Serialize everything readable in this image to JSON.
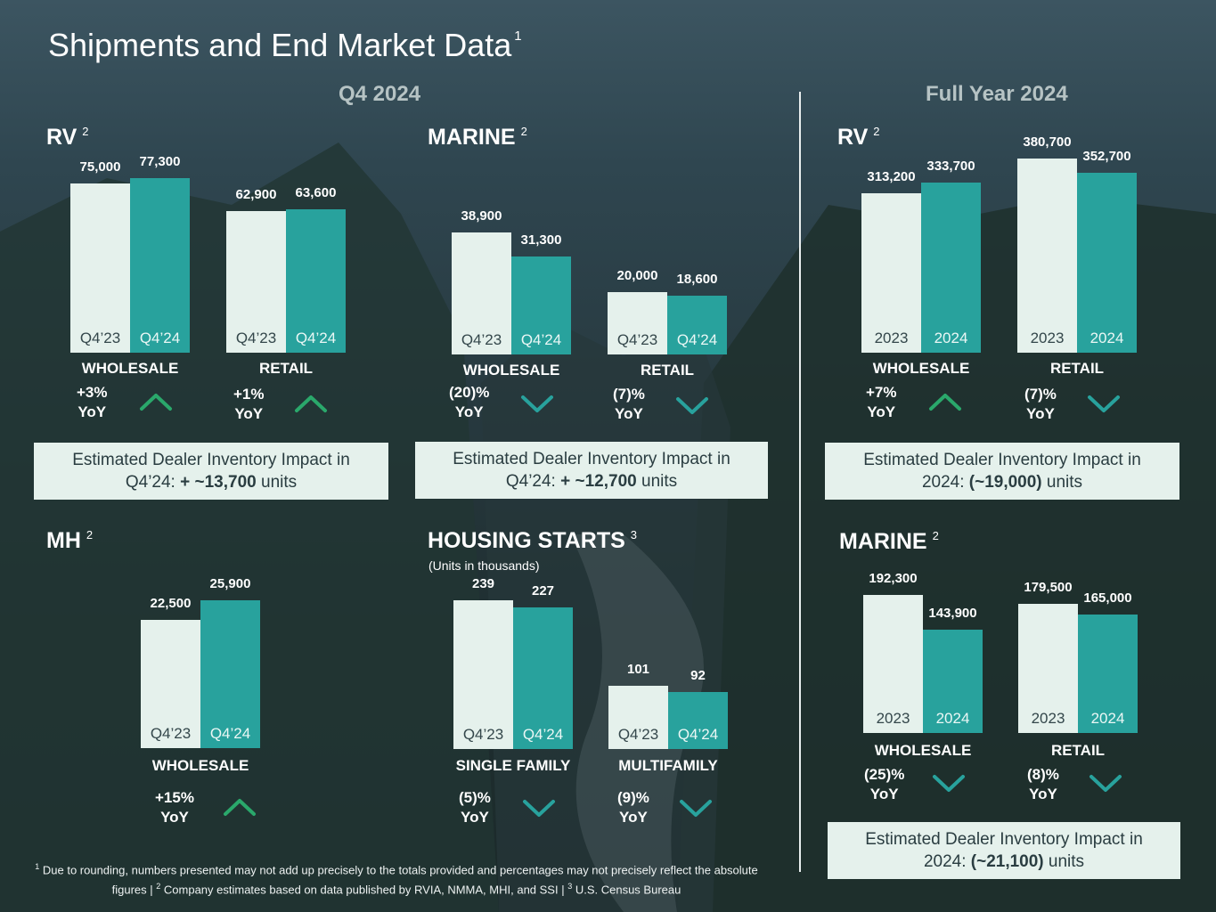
{
  "title": "Shipments and End Market Data",
  "title_footnote": "1",
  "sections": {
    "left": "Q4 2024",
    "right": "Full Year 2024"
  },
  "colors": {
    "prior": "#e5f1ec",
    "current": "#28a29d",
    "up": "#2aa86b",
    "down": "#28a29d"
  },
  "chart_data": [
    {
      "id": "rv_q4",
      "type": "bar",
      "title": "RV",
      "footnote": "2",
      "subtitle": "",
      "groups": [
        {
          "name": "WHOLESALE",
          "categories": [
            "Q4’23",
            "Q4’24"
          ],
          "values": [
            75000,
            77300
          ],
          "value_labels": [
            "75,000",
            "77,300"
          ],
          "yoy": "+3%",
          "yoy_suffix": "YoY",
          "direction": "up"
        },
        {
          "name": "RETAIL",
          "categories": [
            "Q4’23",
            "Q4’24"
          ],
          "values": [
            62900,
            63600
          ],
          "value_labels": [
            "62,900",
            "63,600"
          ],
          "yoy": "+1%",
          "yoy_suffix": "YoY",
          "direction": "up"
        }
      ],
      "ylim": [
        0,
        80000
      ],
      "note": {
        "text": "Estimated Dealer Inventory Impact in Q4’24: ",
        "value": "+ ~13,700",
        "unit": " units"
      }
    },
    {
      "id": "marine_q4",
      "type": "bar",
      "title": "MARINE",
      "footnote": "2",
      "subtitle": "",
      "groups": [
        {
          "name": "WHOLESALE",
          "categories": [
            "Q4’23",
            "Q4’24"
          ],
          "values": [
            38900,
            31300
          ],
          "value_labels": [
            "38,900",
            "31,300"
          ],
          "yoy": "(20)%",
          "yoy_suffix": "YoY",
          "direction": "down"
        },
        {
          "name": "RETAIL",
          "categories": [
            "Q4’23",
            "Q4’24"
          ],
          "values": [
            20000,
            18600
          ],
          "value_labels": [
            "20,000",
            "18,600"
          ],
          "yoy": "(7)%",
          "yoy_suffix": "YoY",
          "direction": "down"
        }
      ],
      "ylim": [
        0,
        45000
      ],
      "note": {
        "text": "Estimated Dealer Inventory Impact in Q4’24: ",
        "value": "+ ~12,700",
        "unit": " units"
      }
    },
    {
      "id": "rv_fy",
      "type": "bar",
      "title": "RV",
      "footnote": "2",
      "subtitle": "",
      "groups": [
        {
          "name": "WHOLESALE",
          "categories": [
            "2023",
            "2024"
          ],
          "values": [
            313200,
            333700
          ],
          "value_labels": [
            "313,200",
            "333,700"
          ],
          "yoy": "+7%",
          "yoy_suffix": "YoY",
          "direction": "up"
        },
        {
          "name": "RETAIL",
          "categories": [
            "2023",
            "2024"
          ],
          "values": [
            380700,
            352700
          ],
          "value_labels": [
            "380,700",
            "352,700"
          ],
          "yoy": "(7)%",
          "yoy_suffix": "YoY",
          "direction": "down"
        }
      ],
      "ylim": [
        0,
        400000
      ],
      "note": {
        "text": "Estimated Dealer Inventory Impact in 2024: ",
        "value": "(~19,000)",
        "unit": " units"
      }
    },
    {
      "id": "mh_q4",
      "type": "bar",
      "title": "MH",
      "footnote": "2",
      "subtitle": "",
      "groups": [
        {
          "name": "WHOLESALE",
          "categories": [
            "Q4’23",
            "Q4’24"
          ],
          "values": [
            22500,
            25900
          ],
          "value_labels": [
            "22,500",
            "25,900"
          ],
          "yoy": "+15%",
          "yoy_suffix": "YoY",
          "direction": "up"
        }
      ],
      "ylim": [
        0,
        30000
      ]
    },
    {
      "id": "housing_q4",
      "type": "bar",
      "title": "HOUSING STARTS",
      "footnote": "3",
      "subtitle": "(Units in thousands)",
      "groups": [
        {
          "name": "SINGLE FAMILY",
          "categories": [
            "Q4’23",
            "Q4’24"
          ],
          "values": [
            239,
            227
          ],
          "value_labels": [
            "239",
            "227"
          ],
          "yoy": "(5)%",
          "yoy_suffix": "YoY",
          "direction": "down"
        },
        {
          "name": "MULTIFAMILY",
          "categories": [
            "Q4’23",
            "Q4’24"
          ],
          "values": [
            101,
            92
          ],
          "value_labels": [
            "101",
            "92"
          ],
          "yoy": "(9)%",
          "yoy_suffix": "YoY",
          "direction": "down"
        }
      ],
      "ylim": [
        0,
        260
      ]
    },
    {
      "id": "marine_fy",
      "type": "bar",
      "title": "MARINE",
      "footnote": "2",
      "subtitle": "",
      "groups": [
        {
          "name": "WHOLESALE",
          "categories": [
            "2023",
            "2024"
          ],
          "values": [
            192300,
            143900
          ],
          "value_labels": [
            "192,300",
            "143,900"
          ],
          "yoy": "(25)%",
          "yoy_suffix": "YoY",
          "direction": "down"
        },
        {
          "name": "RETAIL",
          "categories": [
            "2023",
            "2024"
          ],
          "values": [
            179500,
            165000
          ],
          "value_labels": [
            "179,500",
            "165,000"
          ],
          "yoy": "(8)%",
          "yoy_suffix": "YoY",
          "direction": "down"
        }
      ],
      "ylim": [
        0,
        200000
      ],
      "note": {
        "text": "Estimated Dealer Inventory Impact in 2024: ",
        "value": "(~21,100)",
        "unit": " units"
      }
    }
  ],
  "footnotes": [
    {
      "num": "1",
      "text": " Due to rounding, numbers presented may not add up precisely to the totals provided and percentages may not precisely reflect the absolute figures | "
    },
    {
      "num": "2",
      "text": " Company estimates based on data published by RVIA, NMMA, MHI, and SSI | "
    },
    {
      "num": "3",
      "text": " U.S. Census Bureau"
    }
  ]
}
